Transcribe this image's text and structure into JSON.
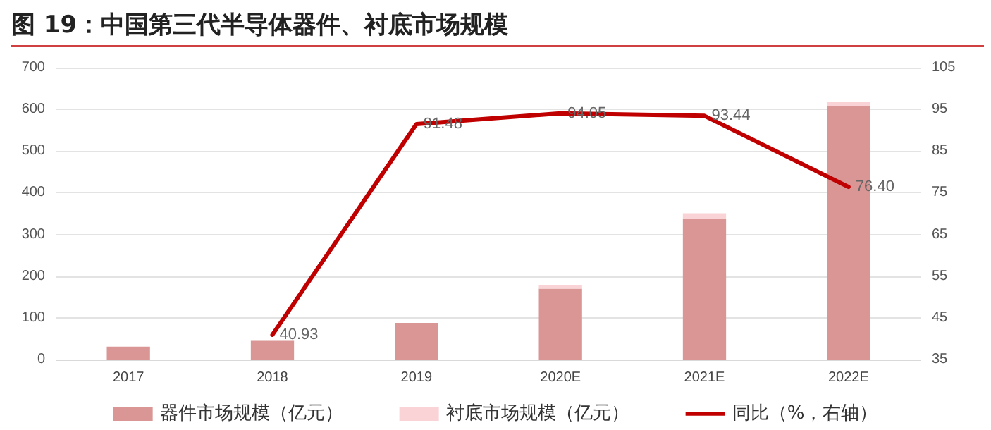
{
  "chart_data": {
    "type": "bar",
    "title": "图 19：中国第三代半导体器件、衬底市场规模",
    "categories": [
      "2017",
      "2018",
      "2019",
      "2020E",
      "2021E",
      "2022E"
    ],
    "stacked": true,
    "series": [
      {
        "name": "器件市场规模（亿元）",
        "color": "#d99694",
        "values": [
          31,
          45,
          88,
          170,
          337,
          607
        ]
      },
      {
        "name": "衬底市场规模（亿元）",
        "color": "#f9d3d6",
        "values": [
          null,
          null,
          null,
          8,
          14,
          11
        ]
      },
      {
        "name": "同比（%，右轴）",
        "type": "line",
        "axis": "y2",
        "color": "#c00000",
        "marker": "none",
        "values": [
          null,
          40.93,
          91.48,
          94.05,
          93.44,
          76.4
        ],
        "value_labels": [
          null,
          "40.93",
          "91.48",
          "94.05",
          "93.44",
          "76.40"
        ]
      }
    ],
    "ylim": [
      0,
      700
    ],
    "yticks": [
      0,
      100,
      200,
      300,
      400,
      500,
      600,
      700
    ],
    "y2lim": [
      35,
      105
    ],
    "y2ticks": [
      35,
      45,
      55,
      65,
      75,
      85,
      95,
      105
    ],
    "grid": "y",
    "legend": "bottom"
  }
}
